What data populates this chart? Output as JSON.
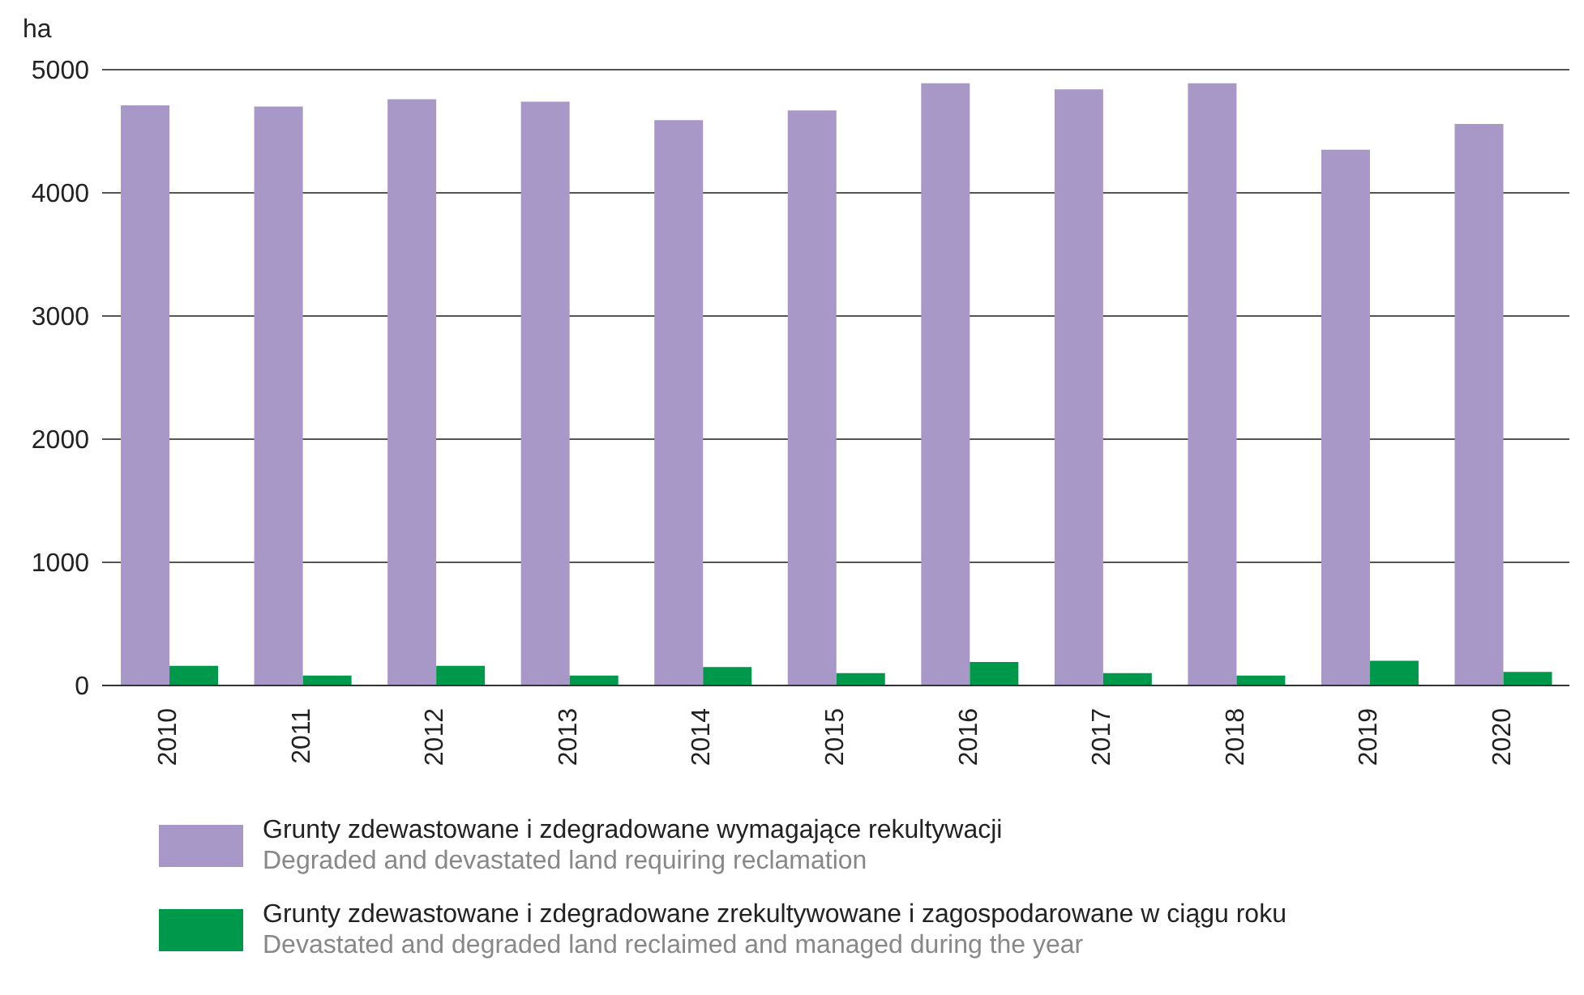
{
  "chart_data": {
    "type": "bar",
    "ylabel": "ha",
    "categories": [
      "2010",
      "2011",
      "2012",
      "2013",
      "2014",
      "2015",
      "2016",
      "2017",
      "2018",
      "2019",
      "2020"
    ],
    "series": [
      {
        "name": "Grunty zdewastowane i zdegradowane wymagające rekultywacji\nDegraded and devastated land requiring reclamation",
        "color": "#a898c8",
        "values": [
          4710,
          4700,
          4760,
          4740,
          4590,
          4670,
          4890,
          4840,
          4890,
          4350,
          4560
        ]
      },
      {
        "name": "Grunty zdewastowane i zdegradowane zrekultywowane i zagospodarowane w ciągu roku\nDevastated and degraded land reclaimed and managed during the year",
        "color": "#00994c",
        "values": [
          160,
          80,
          160,
          80,
          150,
          100,
          190,
          100,
          80,
          200,
          110
        ]
      }
    ],
    "ylim": [
      0,
      5000
    ],
    "yticks": [
      0,
      1000,
      2000,
      3000,
      4000,
      5000
    ],
    "grid": "y",
    "legend": "bottom"
  }
}
